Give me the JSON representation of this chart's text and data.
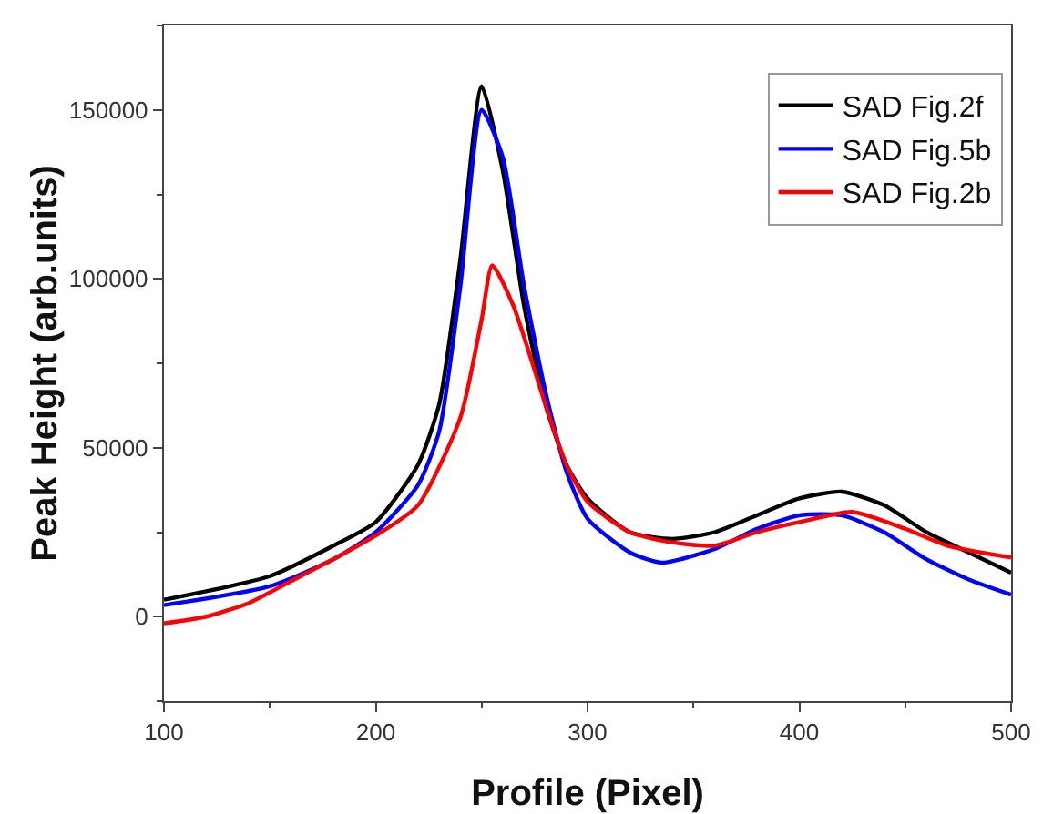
{
  "chart_data": {
    "type": "line",
    "xlabel": "Profile (Pixel)",
    "ylabel": "Peak Height (arb.units)",
    "xlim": [
      100,
      500
    ],
    "xticks": [
      100,
      200,
      300,
      400,
      500
    ],
    "ylim": [
      -25000,
      175000
    ],
    "yticks": [
      0,
      50000,
      100000,
      150000
    ],
    "grid": false,
    "legend": "top right",
    "marker": "none",
    "line_style": "solid",
    "series": [
      {
        "name": "SAD Fig.2f",
        "color": "#000000",
        "x": [
          100,
          150,
          180,
          200,
          220,
          230,
          240,
          250,
          260,
          270,
          280,
          290,
          300,
          320,
          340,
          360,
          380,
          400,
          420,
          440,
          460,
          480,
          500
        ],
        "values": [
          5000,
          12000,
          21000,
          28000,
          45000,
          63000,
          106000,
          157000,
          132000,
          92000,
          63000,
          45000,
          35000,
          25000,
          23000,
          25000,
          30000,
          35000,
          37000,
          33000,
          25000,
          19000,
          13000
        ]
      },
      {
        "name": "SAD Fig.5b",
        "color": "#0000ff",
        "x": [
          100,
          150,
          180,
          200,
          220,
          230,
          240,
          250,
          260,
          270,
          280,
          290,
          300,
          320,
          335,
          360,
          380,
          400,
          420,
          440,
          460,
          480,
          500
        ],
        "values": [
          3400,
          9000,
          17000,
          25000,
          39000,
          55000,
          98000,
          150000,
          136000,
          98000,
          67000,
          43000,
          29000,
          19000,
          16000,
          20000,
          26000,
          30000,
          30000,
          25000,
          17000,
          11000,
          6500
        ]
      },
      {
        "name": "SAD Fig.2b",
        "color": "#ff0000",
        "x": [
          100,
          120,
          140,
          160,
          180,
          200,
          220,
          240,
          250,
          255,
          265,
          280,
          290,
          300,
          320,
          340,
          360,
          380,
          400,
          425,
          450,
          470,
          500
        ],
        "values": [
          -2000,
          0,
          4000,
          10500,
          17000,
          24000,
          33000,
          59000,
          88000,
          104000,
          92000,
          63000,
          45000,
          34000,
          25000,
          22000,
          21000,
          25000,
          28000,
          31000,
          26000,
          21000,
          17500
        ]
      }
    ]
  }
}
